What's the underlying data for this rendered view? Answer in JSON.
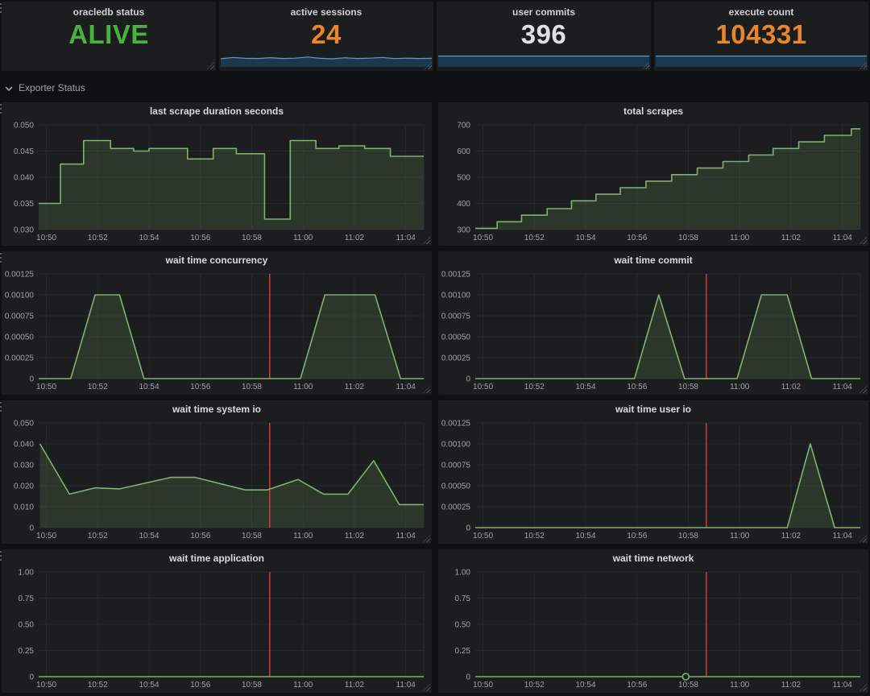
{
  "colors": {
    "page_bg": "#0f1011",
    "panel_bg": "#1c1d1f",
    "grid": "#26282b",
    "axis_label": "#9fa2a6",
    "panel_title": "#d8dadd",
    "series_green": "#7eb26d",
    "series_green_fill": "rgba(126,178,109,0.17)",
    "annotation_red": "#d03b36",
    "spark_line": "#5b9bd5",
    "spark_fill": "rgba(31,120,193,0.30)",
    "stat_green": "#47b33e",
    "stat_orange": "#e8862d",
    "stat_white": "#dfe0e2"
  },
  "stats": [
    {
      "title": "oracledb status",
      "value": "ALIVE",
      "color": "#47b33e",
      "spark": null
    },
    {
      "title": "active sessions",
      "value": "24",
      "color": "#e8862d",
      "spark": {
        "points": [
          0.45,
          0.3,
          0.4,
          0.42,
          0.33,
          0.42,
          0.38,
          0.25,
          0.4,
          0.45,
          0.34,
          0.42,
          0.38,
          0.3,
          0.43,
          0.38,
          0.42,
          0.4
        ]
      }
    },
    {
      "title": "user commits",
      "value": "396",
      "color": "#dfe0e2",
      "spark": {
        "points": [
          0.15,
          0.15
        ]
      }
    },
    {
      "title": "execute count",
      "value": "104331",
      "color": "#e8862d",
      "spark": {
        "points": [
          0.15,
          0.15
        ]
      }
    }
  ],
  "row_header": {
    "label": "Exporter Status",
    "collapsed": false
  },
  "xaxis": {
    "lim": [
      -0.3,
      14.7
    ],
    "start_label": "10:50",
    "ticks": [
      {
        "t": 0,
        "label": "10:50"
      },
      {
        "t": 2,
        "label": "10:52"
      },
      {
        "t": 4,
        "label": "10:54"
      },
      {
        "t": 6,
        "label": "10:56"
      },
      {
        "t": 8,
        "label": "10:58"
      },
      {
        "t": 10,
        "label": "11:00"
      },
      {
        "t": 12,
        "label": "11:02"
      },
      {
        "t": 14,
        "label": "11:04"
      }
    ]
  },
  "chart_data": [
    {
      "title": "last scrape duration seconds",
      "type": "line",
      "mode": "step",
      "ylim": [
        0.03,
        0.05
      ],
      "yticks": [
        {
          "v": 0.03,
          "label": "0.030"
        },
        {
          "v": 0.035,
          "label": "0.035"
        },
        {
          "v": 0.04,
          "label": "0.040"
        },
        {
          "v": 0.045,
          "label": "0.045"
        },
        {
          "v": 0.05,
          "label": "0.050"
        }
      ],
      "points": [
        [
          -0.3,
          0.035
        ],
        [
          0.55,
          0.0425
        ],
        [
          1.45,
          0.047
        ],
        [
          2.5,
          0.0455
        ],
        [
          3.4,
          0.045
        ],
        [
          4.0,
          0.0455
        ],
        [
          5.5,
          0.0435
        ],
        [
          6.5,
          0.0455
        ],
        [
          7.4,
          0.0445
        ],
        [
          8.5,
          0.032
        ],
        [
          9.5,
          0.047
        ],
        [
          10.5,
          0.0455
        ],
        [
          11.4,
          0.046
        ],
        [
          12.4,
          0.0455
        ],
        [
          13.4,
          0.044
        ]
      ],
      "annotation_t": null,
      "marker": null
    },
    {
      "title": "total scrapes",
      "type": "line",
      "mode": "step",
      "ylim": [
        300,
        700
      ],
      "yticks": [
        {
          "v": 300,
          "label": "300"
        },
        {
          "v": 400,
          "label": "400"
        },
        {
          "v": 500,
          "label": "500"
        },
        {
          "v": 600,
          "label": "600"
        },
        {
          "v": 700,
          "label": "700"
        }
      ],
      "points": [
        [
          -0.3,
          305
        ],
        [
          0.55,
          330
        ],
        [
          1.5,
          355
        ],
        [
          2.5,
          380
        ],
        [
          3.45,
          410
        ],
        [
          4.4,
          435
        ],
        [
          5.35,
          460
        ],
        [
          6.35,
          485
        ],
        [
          7.35,
          510
        ],
        [
          8.35,
          535
        ],
        [
          9.35,
          560
        ],
        [
          10.35,
          585
        ],
        [
          11.3,
          610
        ],
        [
          12.3,
          635
        ],
        [
          13.3,
          660
        ],
        [
          14.35,
          685
        ]
      ],
      "annotation_t": null,
      "marker": null
    },
    {
      "title": "wait time concurrency",
      "type": "line",
      "mode": "linear",
      "ylim": [
        0,
        0.00125
      ],
      "yticks": [
        {
          "v": 0,
          "label": "0"
        },
        {
          "v": 0.00025,
          "label": "0.00025"
        },
        {
          "v": 0.0005,
          "label": "0.00050"
        },
        {
          "v": 0.00075,
          "label": "0.00075"
        },
        {
          "v": 0.001,
          "label": "0.00100"
        },
        {
          "v": 0.00125,
          "label": "0.00125"
        }
      ],
      "points": [
        [
          -0.3,
          0
        ],
        [
          0.95,
          0
        ],
        [
          1.9,
          0.001
        ],
        [
          2.85,
          0.001
        ],
        [
          3.8,
          0
        ],
        [
          9.9,
          0
        ],
        [
          10.85,
          0.001
        ],
        [
          12.8,
          0.001
        ],
        [
          13.8,
          0
        ],
        [
          14.7,
          0
        ]
      ],
      "annotation_t": 8.7,
      "marker": null
    },
    {
      "title": "wait time commit",
      "type": "line",
      "mode": "linear",
      "ylim": [
        0,
        0.00125
      ],
      "yticks": [
        {
          "v": 0,
          "label": "0"
        },
        {
          "v": 0.00025,
          "label": "0.00025"
        },
        {
          "v": 0.0005,
          "label": "0.00050"
        },
        {
          "v": 0.00075,
          "label": "0.00075"
        },
        {
          "v": 0.001,
          "label": "0.00100"
        },
        {
          "v": 0.00125,
          "label": "0.00125"
        }
      ],
      "points": [
        [
          -0.3,
          0
        ],
        [
          5.9,
          0
        ],
        [
          6.85,
          0.001
        ],
        [
          7.85,
          0
        ],
        [
          9.9,
          0
        ],
        [
          10.85,
          0.001
        ],
        [
          11.85,
          0.001
        ],
        [
          12.8,
          0
        ],
        [
          14.7,
          0
        ]
      ],
      "annotation_t": 8.7,
      "marker": null
    },
    {
      "title": "wait time system io",
      "type": "line",
      "mode": "linear",
      "ylim": [
        0,
        0.05
      ],
      "yticks": [
        {
          "v": 0,
          "label": "0"
        },
        {
          "v": 0.01,
          "label": "0.010"
        },
        {
          "v": 0.02,
          "label": "0.020"
        },
        {
          "v": 0.03,
          "label": "0.030"
        },
        {
          "v": 0.04,
          "label": "0.040"
        },
        {
          "v": 0.05,
          "label": "0.050"
        }
      ],
      "points": [
        [
          -0.25,
          0.04
        ],
        [
          0.9,
          0.016
        ],
        [
          1.9,
          0.019
        ],
        [
          2.85,
          0.0185
        ],
        [
          4.85,
          0.024
        ],
        [
          5.8,
          0.024
        ],
        [
          7.75,
          0.018
        ],
        [
          8.6,
          0.018
        ],
        [
          9.8,
          0.023
        ],
        [
          10.8,
          0.016
        ],
        [
          11.75,
          0.016
        ],
        [
          12.75,
          0.032
        ],
        [
          13.75,
          0.011
        ],
        [
          14.7,
          0.011
        ]
      ],
      "annotation_t": 8.7,
      "marker": null
    },
    {
      "title": "wait time user io",
      "type": "line",
      "mode": "linear",
      "ylim": [
        0,
        0.00125
      ],
      "yticks": [
        {
          "v": 0,
          "label": "0"
        },
        {
          "v": 0.00025,
          "label": "0.00025"
        },
        {
          "v": 0.0005,
          "label": "0.00050"
        },
        {
          "v": 0.00075,
          "label": "0.00075"
        },
        {
          "v": 0.001,
          "label": "0.00100"
        },
        {
          "v": 0.00125,
          "label": "0.00125"
        }
      ],
      "points": [
        [
          -0.3,
          0
        ],
        [
          11.85,
          0
        ],
        [
          12.75,
          0.001
        ],
        [
          13.7,
          0
        ],
        [
          14.7,
          0
        ]
      ],
      "annotation_t": 8.7,
      "marker": null
    },
    {
      "title": "wait time application",
      "type": "line",
      "mode": "linear",
      "ylim": [
        0,
        1.0
      ],
      "yticks": [
        {
          "v": 0,
          "label": "0"
        },
        {
          "v": 0.25,
          "label": "0.25"
        },
        {
          "v": 0.5,
          "label": "0.50"
        },
        {
          "v": 0.75,
          "label": "0.75"
        },
        {
          "v": 1.0,
          "label": "1.00"
        }
      ],
      "points": [
        [
          -0.3,
          0
        ],
        [
          14.7,
          0
        ]
      ],
      "annotation_t": 8.7,
      "marker": null
    },
    {
      "title": "wait time network",
      "type": "line",
      "mode": "linear",
      "ylim": [
        0,
        1.0
      ],
      "yticks": [
        {
          "v": 0,
          "label": "0"
        },
        {
          "v": 0.25,
          "label": "0.25"
        },
        {
          "v": 0.5,
          "label": "0.50"
        },
        {
          "v": 0.75,
          "label": "0.75"
        },
        {
          "v": 1.0,
          "label": "1.00"
        }
      ],
      "points": [
        [
          -0.3,
          0
        ],
        [
          14.7,
          0
        ]
      ],
      "annotation_t": 8.7,
      "marker": [
        7.9,
        0
      ]
    }
  ]
}
